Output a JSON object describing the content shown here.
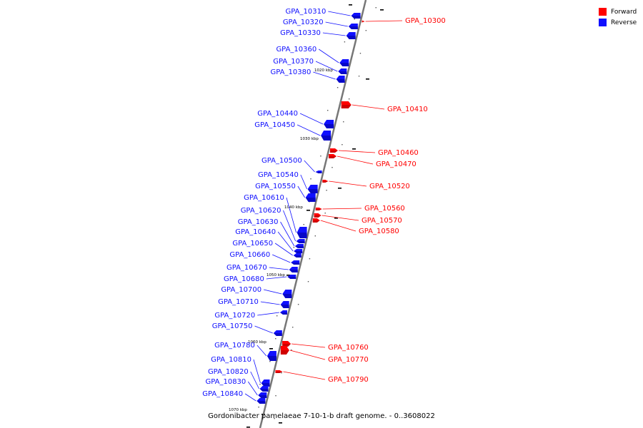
{
  "legend": [
    {
      "label": "Forward",
      "color": "#ff0000"
    },
    {
      "label": "Reverse",
      "color": "#1010ff"
    }
  ],
  "caption": "Gordonibacter pamelaeae 7-10-1-b draft genome. - 0..3608022",
  "colors": {
    "forward": "#ff0000",
    "forward_dark": "#a80000",
    "reverse": "#1010ff",
    "reverse_dark": "#00009a",
    "backbone": "#777777"
  },
  "kbp_marks": [
    "1020 kbp",
    "1030 kbp",
    "1040 kbp",
    "1050 kbp",
    "1060 kbp",
    "1070 kbp"
  ],
  "genes": [
    {
      "name": "GPA_10300",
      "strand": "forward"
    },
    {
      "name": "GPA_10310",
      "strand": "reverse"
    },
    {
      "name": "GPA_10320",
      "strand": "reverse"
    },
    {
      "name": "GPA_10330",
      "strand": "reverse"
    },
    {
      "name": "GPA_10360",
      "strand": "reverse"
    },
    {
      "name": "GPA_10370",
      "strand": "reverse"
    },
    {
      "name": "GPA_10380",
      "strand": "reverse"
    },
    {
      "name": "GPA_10410",
      "strand": "forward"
    },
    {
      "name": "GPA_10440",
      "strand": "reverse"
    },
    {
      "name": "GPA_10450",
      "strand": "reverse"
    },
    {
      "name": "GPA_10460",
      "strand": "forward"
    },
    {
      "name": "GPA_10470",
      "strand": "forward"
    },
    {
      "name": "GPA_10500",
      "strand": "reverse"
    },
    {
      "name": "GPA_10520",
      "strand": "forward"
    },
    {
      "name": "GPA_10540",
      "strand": "reverse"
    },
    {
      "name": "GPA_10550",
      "strand": "reverse"
    },
    {
      "name": "GPA_10560",
      "strand": "forward"
    },
    {
      "name": "GPA_10570",
      "strand": "forward"
    },
    {
      "name": "GPA_10580",
      "strand": "forward"
    },
    {
      "name": "GPA_10610",
      "strand": "reverse"
    },
    {
      "name": "GPA_10620",
      "strand": "reverse"
    },
    {
      "name": "GPA_10630",
      "strand": "reverse"
    },
    {
      "name": "GPA_10640",
      "strand": "reverse"
    },
    {
      "name": "GPA_10650",
      "strand": "reverse"
    },
    {
      "name": "GPA_10660",
      "strand": "reverse"
    },
    {
      "name": "GPA_10670",
      "strand": "reverse"
    },
    {
      "name": "GPA_10680",
      "strand": "reverse"
    },
    {
      "name": "GPA_10700",
      "strand": "reverse"
    },
    {
      "name": "GPA_10710",
      "strand": "reverse"
    },
    {
      "name": "GPA_10720",
      "strand": "reverse"
    },
    {
      "name": "GPA_10750",
      "strand": "reverse"
    },
    {
      "name": "GPA_10760",
      "strand": "forward"
    },
    {
      "name": "GPA_10770",
      "strand": "forward"
    },
    {
      "name": "GPA_10780",
      "strand": "reverse"
    },
    {
      "name": "GPA_10790",
      "strand": "forward"
    },
    {
      "name": "GPA_10810",
      "strand": "reverse"
    },
    {
      "name": "GPA_10820",
      "strand": "reverse"
    },
    {
      "name": "GPA_10830",
      "strand": "reverse"
    },
    {
      "name": "GPA_10840",
      "strand": "reverse"
    }
  ]
}
